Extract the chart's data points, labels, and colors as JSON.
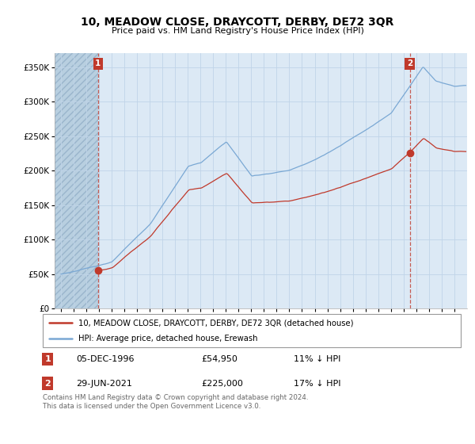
{
  "title": "10, MEADOW CLOSE, DRAYCOTT, DERBY, DE72 3QR",
  "subtitle": "Price paid vs. HM Land Registry's House Price Index (HPI)",
  "legend_line1": "10, MEADOW CLOSE, DRAYCOTT, DERBY, DE72 3QR (detached house)",
  "legend_line2": "HPI: Average price, detached house, Erewash",
  "annotation1_date": "05-DEC-1996",
  "annotation1_price": "£54,950",
  "annotation1_hpi": "11% ↓ HPI",
  "annotation2_date": "29-JUN-2021",
  "annotation2_price": "£225,000",
  "annotation2_hpi": "17% ↓ HPI",
  "footnote": "Contains HM Land Registry data © Crown copyright and database right 2024.\nThis data is licensed under the Open Government Licence v3.0.",
  "hpi_color": "#7aa8d4",
  "price_color": "#c0392b",
  "marker_color": "#c0392b",
  "annotation_box_color": "#c0392b",
  "bg_color": "#dce9f5",
  "hatch_color": "#b8cfe0",
  "grid_color": "#c0d4e8",
  "ylim": [
    0,
    370000
  ],
  "yticks": [
    0,
    50000,
    100000,
    150000,
    200000,
    250000,
    300000,
    350000
  ],
  "sale1_x": 1996.92,
  "sale1_y": 54950,
  "sale2_x": 2021.5,
  "sale2_y": 225000,
  "xmin": 1993.5,
  "xmax": 2026.0
}
